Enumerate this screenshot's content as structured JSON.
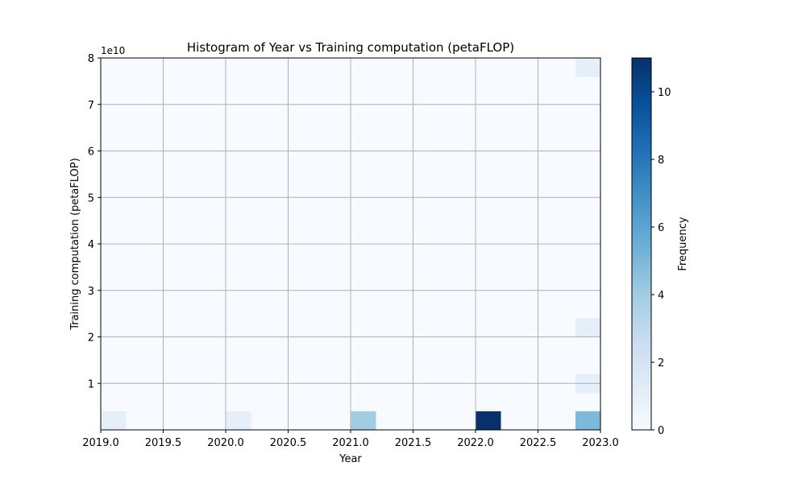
{
  "chart_data": {
    "type": "heatmap",
    "title": "Histogram of Year vs Training computation (petaFLOP)",
    "xlabel": "Year",
    "ylabel": "Training computation (petaFLOP)",
    "y_scale_label": "1e10",
    "xlim": [
      2019.0,
      2023.0
    ],
    "ylim": [
      0,
      8
    ],
    "x_ticks": [
      "2019.0",
      "2019.5",
      "2020.0",
      "2020.5",
      "2021.0",
      "2021.5",
      "2022.0",
      "2022.5",
      "2023.0"
    ],
    "y_ticks": [
      "1",
      "2",
      "3",
      "4",
      "5",
      "6",
      "7",
      "8"
    ],
    "grid": true,
    "colormap": "Blues",
    "colorbar": {
      "label": "Frequency",
      "min": 0,
      "max": 11,
      "ticks": [
        "0",
        "2",
        "4",
        "6",
        "8",
        "10"
      ]
    },
    "bins": {
      "x_count": 20,
      "y_count": 20
    },
    "nonzero_cells": [
      {
        "x_bin": 0,
        "y_bin": 0,
        "count": 1
      },
      {
        "x_bin": 5,
        "y_bin": 0,
        "count": 1
      },
      {
        "x_bin": 10,
        "y_bin": 0,
        "count": 4
      },
      {
        "x_bin": 15,
        "y_bin": 0,
        "count": 11
      },
      {
        "x_bin": 19,
        "y_bin": 0,
        "count": 5
      },
      {
        "x_bin": 19,
        "y_bin": 2,
        "count": 1
      },
      {
        "x_bin": 19,
        "y_bin": 5,
        "count": 1
      },
      {
        "x_bin": 19,
        "y_bin": 19,
        "count": 1
      }
    ]
  }
}
